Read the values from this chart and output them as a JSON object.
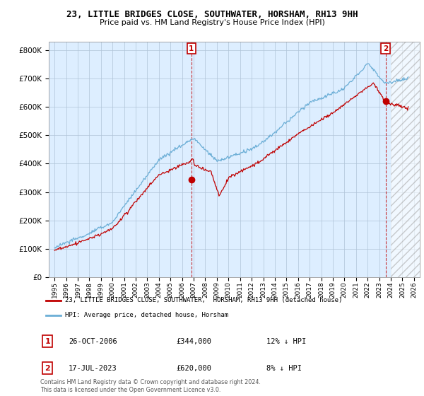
{
  "title": "23, LITTLE BRIDGES CLOSE, SOUTHWATER, HORSHAM, RH13 9HH",
  "subtitle": "Price paid vs. HM Land Registry's House Price Index (HPI)",
  "legend_line1": "23, LITTLE BRIDGES CLOSE, SOUTHWATER,  HORSHAM, RH13 9HH (detached house)",
  "legend_line2": "HPI: Average price, detached house, Horsham",
  "annotation1_date": "26-OCT-2006",
  "annotation1_price": "£344,000",
  "annotation1_hpi": "12% ↓ HPI",
  "annotation2_date": "17-JUL-2023",
  "annotation2_price": "£620,000",
  "annotation2_hpi": "8% ↓ HPI",
  "footer": "Contains HM Land Registry data © Crown copyright and database right 2024.\nThis data is licensed under the Open Government Licence v3.0.",
  "purchase1_year": 2006.8,
  "purchase1_price": 344000,
  "purchase2_year": 2023.55,
  "purchase2_price": 620000,
  "hpi_color": "#6baed6",
  "price_color": "#c00000",
  "plot_bg_color": "#ddeeff",
  "bg_color": "#ffffff",
  "grid_color": "#b0c4d8",
  "ylim_min": 0,
  "ylim_max": 830000,
  "xlim_min": 1994.5,
  "xlim_max": 2026.5
}
